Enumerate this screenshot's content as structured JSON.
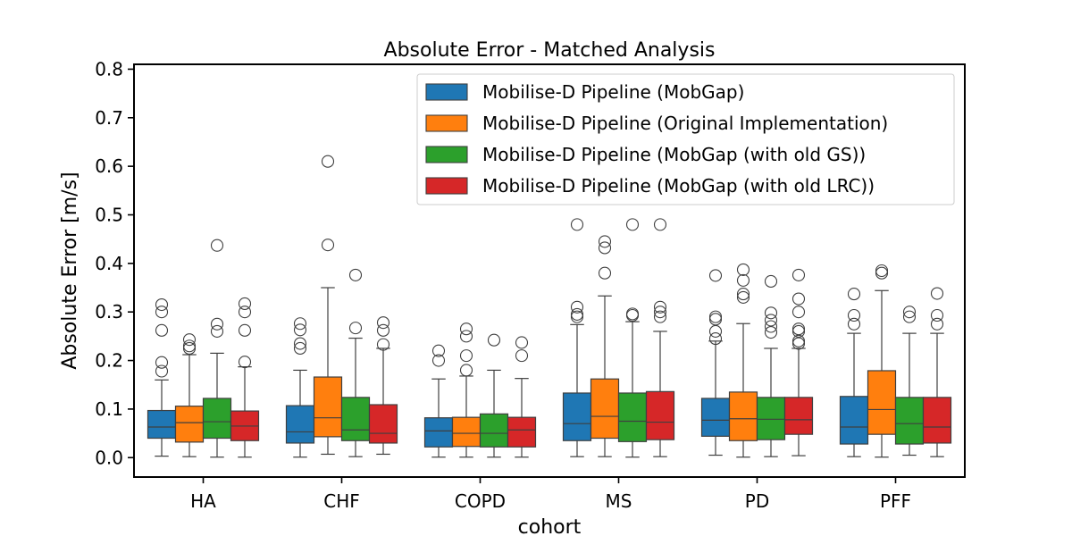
{
  "chart_data": {
    "type": "box",
    "title": "Absolute Error - Matched Analysis",
    "xlabel": "cohort",
    "ylabel": "Absolute Error [m/s]",
    "ylim": [
      -0.04,
      0.81
    ],
    "yticks": [
      "0.0",
      "0.1",
      "0.2",
      "0.3",
      "0.4",
      "0.5",
      "0.6",
      "0.7",
      "0.8"
    ],
    "grid": false,
    "legend_position": "top-right",
    "categories": [
      "HA",
      "CHF",
      "COPD",
      "MS",
      "PD",
      "PFF"
    ],
    "series": [
      {
        "name": "Mobilise-D Pipeline (MobGap)",
        "color": "#1f77b4",
        "boxes": [
          {
            "whislo": 0.003,
            "q1": 0.04,
            "med": 0.063,
            "q3": 0.097,
            "whishi": 0.16,
            "fliers": [
              0.178,
              0.196,
              0.262,
              0.3,
              0.315
            ]
          },
          {
            "whislo": 0.001,
            "q1": 0.03,
            "med": 0.053,
            "q3": 0.107,
            "whishi": 0.18,
            "fliers": [
              0.225,
              0.235,
              0.263,
              0.276
            ]
          },
          {
            "whislo": 0.001,
            "q1": 0.022,
            "med": 0.055,
            "q3": 0.082,
            "whishi": 0.162,
            "fliers": [
              0.2,
              0.22
            ]
          },
          {
            "whislo": 0.002,
            "q1": 0.035,
            "med": 0.07,
            "q3": 0.133,
            "whishi": 0.274,
            "fliers": [
              0.29,
              0.295,
              0.31,
              0.48
            ]
          },
          {
            "whislo": 0.005,
            "q1": 0.044,
            "med": 0.077,
            "q3": 0.122,
            "whishi": 0.24,
            "fliers": [
              0.245,
              0.26,
              0.285,
              0.29,
              0.375
            ]
          },
          {
            "whislo": 0.002,
            "q1": 0.028,
            "med": 0.063,
            "q3": 0.126,
            "whishi": 0.256,
            "fliers": [
              0.275,
              0.293,
              0.337
            ]
          }
        ]
      },
      {
        "name": "Mobilise-D Pipeline (Original Implementation)",
        "color": "#ff7f0e",
        "boxes": [
          {
            "whislo": 0.002,
            "q1": 0.032,
            "med": 0.072,
            "q3": 0.106,
            "whishi": 0.212,
            "fliers": [
              0.225,
              0.23,
              0.243
            ]
          },
          {
            "whislo": 0.007,
            "q1": 0.043,
            "med": 0.082,
            "q3": 0.166,
            "whishi": 0.35,
            "fliers": [
              0.438,
              0.61
            ]
          },
          {
            "whislo": 0.001,
            "q1": 0.023,
            "med": 0.05,
            "q3": 0.083,
            "whishi": 0.168,
            "fliers": [
              0.18,
              0.21,
              0.25,
              0.265
            ]
          },
          {
            "whislo": 0.002,
            "q1": 0.04,
            "med": 0.085,
            "q3": 0.162,
            "whishi": 0.333,
            "fliers": [
              0.38,
              0.432,
              0.445
            ]
          },
          {
            "whislo": 0.001,
            "q1": 0.035,
            "med": 0.08,
            "q3": 0.135,
            "whishi": 0.276,
            "fliers": [
              0.33,
              0.337,
              0.365,
              0.387
            ]
          },
          {
            "whislo": 0.001,
            "q1": 0.048,
            "med": 0.099,
            "q3": 0.179,
            "whishi": 0.344,
            "fliers": [
              0.38,
              0.385
            ]
          }
        ]
      },
      {
        "name": "Mobilise-D Pipeline (MobGap (with old GS))",
        "color": "#2ca02c",
        "boxes": [
          {
            "whislo": 0.001,
            "q1": 0.04,
            "med": 0.074,
            "q3": 0.122,
            "whishi": 0.215,
            "fliers": [
              0.26,
              0.275,
              0.437
            ]
          },
          {
            "whislo": 0.002,
            "q1": 0.035,
            "med": 0.057,
            "q3": 0.124,
            "whishi": 0.246,
            "fliers": [
              0.267,
              0.376
            ]
          },
          {
            "whislo": 0.001,
            "q1": 0.022,
            "med": 0.05,
            "q3": 0.09,
            "whishi": 0.18,
            "fliers": [
              0.242
            ]
          },
          {
            "whislo": 0.001,
            "q1": 0.033,
            "med": 0.075,
            "q3": 0.133,
            "whishi": 0.28,
            "fliers": [
              0.293,
              0.296,
              0.48
            ]
          },
          {
            "whislo": 0.002,
            "q1": 0.037,
            "med": 0.079,
            "q3": 0.124,
            "whishi": 0.225,
            "fliers": [
              0.258,
              0.27,
              0.283,
              0.298,
              0.363
            ]
          },
          {
            "whislo": 0.005,
            "q1": 0.028,
            "med": 0.07,
            "q3": 0.124,
            "whishi": 0.256,
            "fliers": [
              0.29,
              0.3
            ]
          }
        ]
      },
      {
        "name": "Mobilise-D Pipeline (MobGap (with old LRC))",
        "color": "#d62728",
        "boxes": [
          {
            "whislo": 0.001,
            "q1": 0.035,
            "med": 0.065,
            "q3": 0.096,
            "whishi": 0.187,
            "fliers": [
              0.197,
              0.262,
              0.3,
              0.317
            ]
          },
          {
            "whislo": 0.007,
            "q1": 0.03,
            "med": 0.05,
            "q3": 0.109,
            "whishi": 0.225,
            "fliers": [
              0.233,
              0.262,
              0.278
            ]
          },
          {
            "whislo": 0.001,
            "q1": 0.022,
            "med": 0.057,
            "q3": 0.083,
            "whishi": 0.163,
            "fliers": [
              0.21,
              0.237
            ]
          },
          {
            "whislo": 0.002,
            "q1": 0.037,
            "med": 0.073,
            "q3": 0.136,
            "whishi": 0.26,
            "fliers": [
              0.29,
              0.3,
              0.31,
              0.48
            ]
          },
          {
            "whislo": 0.004,
            "q1": 0.048,
            "med": 0.078,
            "q3": 0.124,
            "whishi": 0.225,
            "fliers": [
              0.235,
              0.24,
              0.26,
              0.265,
              0.3,
              0.327,
              0.376
            ]
          },
          {
            "whislo": 0.002,
            "q1": 0.03,
            "med": 0.063,
            "q3": 0.124,
            "whishi": 0.256,
            "fliers": [
              0.275,
              0.293,
              0.338
            ]
          }
        ]
      }
    ]
  }
}
